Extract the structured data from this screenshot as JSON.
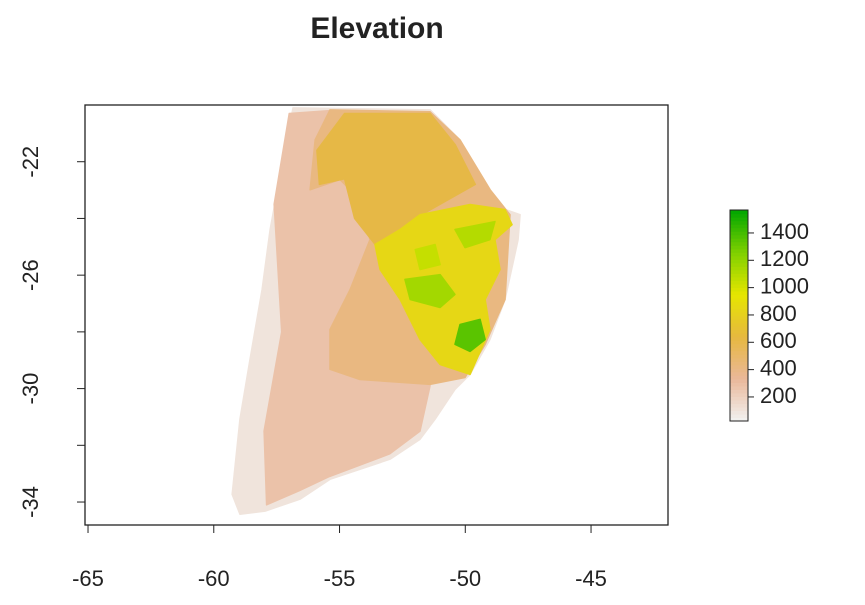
{
  "chart_data": {
    "type": "raster",
    "title": "Elevation",
    "xlim": [
      -65.12,
      -41.94
    ],
    "ylim": [
      -34.81,
      -20.0
    ],
    "xticks": [
      -65,
      -60,
      -55,
      -50,
      -45
    ],
    "yticks": [
      -22,
      -26,
      -30,
      -34
    ],
    "yminor_ticks": [
      -24,
      -28,
      -32
    ],
    "zlim": [
      24,
      1568
    ],
    "zticks": [
      200,
      400,
      600,
      800,
      1000,
      1200,
      1400
    ],
    "palette": [
      "#f2f2f2",
      "#eab89a",
      "#e6b840",
      "#e6e600",
      "#7fd000",
      "#00a600"
    ],
    "zones": [
      {
        "elevation": 100,
        "lon": [
          -56.85,
          -51.4,
          -50.21,
          -49.21,
          -48.62,
          -47.82,
          -47.9,
          -48.42,
          -49.02,
          -49.81,
          -50.41,
          -51.2,
          -51.8,
          -52.99,
          -55.38,
          -56.57,
          -57.96,
          -58.96,
          -59.27,
          -58.96,
          -58.56,
          -58.08,
          -57.76,
          -57.25
        ],
        "lat": [
          -20.1,
          -20.17,
          -21.23,
          -22.81,
          -23.62,
          -23.87,
          -24.75,
          -26.86,
          -28.27,
          -29.5,
          -30.03,
          -31.08,
          -31.79,
          -32.49,
          -33.2,
          -33.9,
          -34.32,
          -34.43,
          -33.73,
          -31.08,
          -28.97,
          -26.51,
          -24.39,
          -21.93
        ]
      },
      {
        "elevation": 280,
        "lon": [
          -57.0,
          -55.4,
          -54.2,
          -53.0,
          -51.4,
          -51.8,
          -53.0,
          -55.4,
          -56.6,
          -57.9,
          -58.0,
          -57.3,
          -57.6
        ],
        "lat": [
          -20.3,
          -20.2,
          -20.9,
          -24.5,
          -29.9,
          -31.5,
          -32.3,
          -33.1,
          -33.6,
          -34.1,
          -31.5,
          -28.0,
          -23.5
        ]
      },
      {
        "elevation": 420,
        "lon": [
          -55.38,
          -51.4,
          -50.21,
          -49.01,
          -48.22,
          -48.42,
          -49.21,
          -50.01,
          -51.4,
          -54.19,
          -55.38,
          -55.38,
          -54.58,
          -53.79,
          -54.19,
          -54.98,
          -56.17,
          -55.97
        ],
        "lat": [
          -20.17,
          -20.24,
          -21.23,
          -22.99,
          -23.87,
          -26.86,
          -28.44,
          -29.61,
          -29.85,
          -29.68,
          -29.32,
          -27.92,
          -26.51,
          -24.75,
          -23.34,
          -22.63,
          -22.99,
          -21.23
        ]
      },
      {
        "elevation": 620,
        "lon": [
          -54.8,
          -51.4,
          -50.4,
          -49.6,
          -51.8,
          -53.6,
          -54.4,
          -54.8,
          -55.8,
          -55.9
        ],
        "lat": [
          -20.3,
          -20.3,
          -21.4,
          -22.8,
          -23.9,
          -24.9,
          -24.0,
          -22.6,
          -22.8,
          -21.6
        ]
      },
      {
        "elevation": 850,
        "lon": [
          -51.8,
          -49.81,
          -48.42,
          -48.14,
          -48.82,
          -48.62,
          -49.21,
          -49.02,
          -49.81,
          -51.0,
          -51.8,
          -52.59,
          -53.39,
          -53.59,
          -52.59
        ],
        "lat": [
          -23.87,
          -23.51,
          -23.69,
          -24.22,
          -24.75,
          -25.8,
          -26.86,
          -27.92,
          -29.5,
          -29.15,
          -28.27,
          -26.86,
          -25.8,
          -24.92,
          -24.39
        ]
      },
      {
        "elevation": 1150,
        "lon": [
          -52.4,
          -51.0,
          -50.41,
          -51.0,
          -52.19
        ],
        "lat": [
          -26.15,
          -25.98,
          -26.68,
          -27.14,
          -26.86
        ]
      },
      {
        "elevation": 1350,
        "lon": [
          -50.21,
          -49.41,
          -49.21,
          -49.81,
          -50.41
        ],
        "lat": [
          -27.74,
          -27.56,
          -28.27,
          -28.69,
          -28.44
        ]
      },
      {
        "elevation": 1100,
        "lon": [
          -50.41,
          -48.82,
          -49.02,
          -50.01
        ],
        "lat": [
          -24.39,
          -24.11,
          -24.75,
          -25.03
        ]
      },
      {
        "elevation": 1050,
        "lon": [
          -51.99,
          -51.2,
          -51.0,
          -51.8
        ],
        "lat": [
          -25.1,
          -24.92,
          -25.63,
          -25.8
        ]
      }
    ]
  }
}
